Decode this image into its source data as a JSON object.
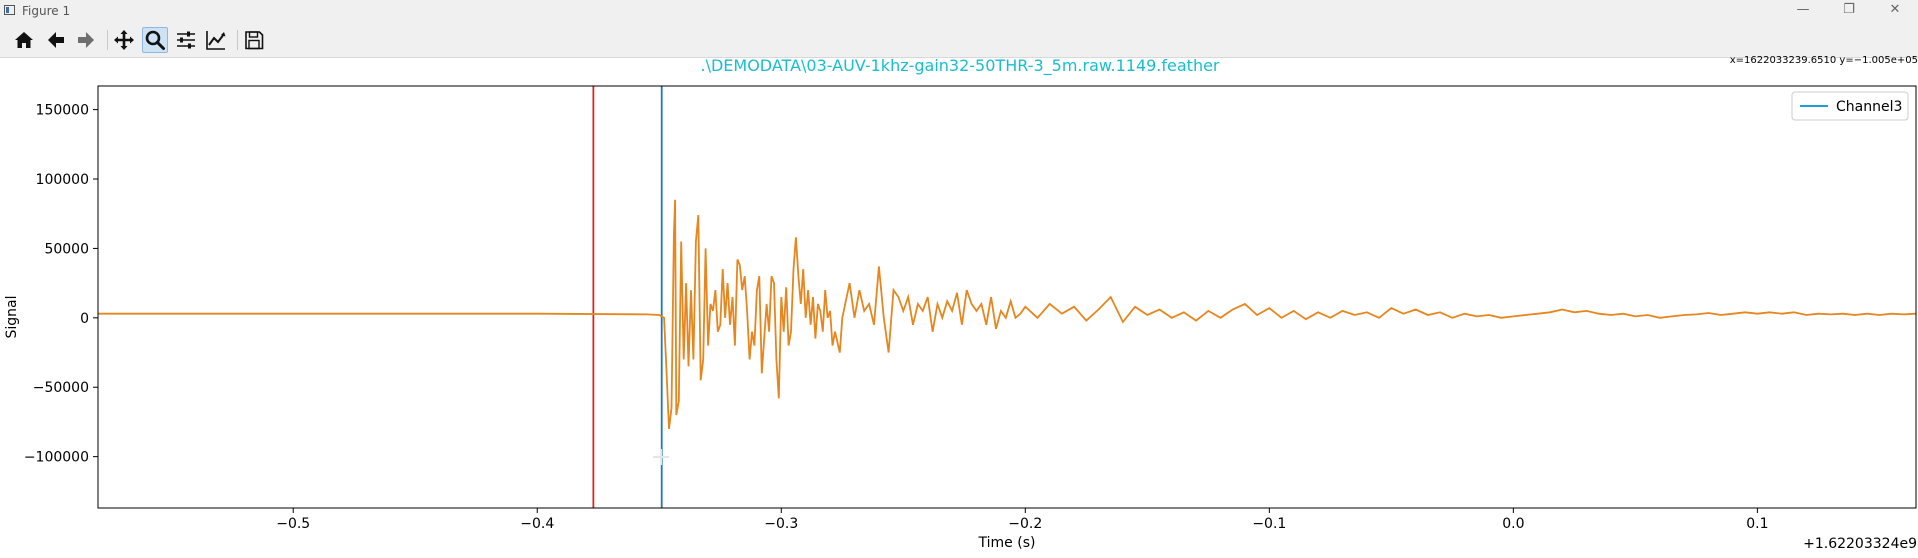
{
  "window": {
    "title": "Figure 1",
    "controls": [
      "minimize",
      "maximize",
      "close"
    ]
  },
  "toolbar": {
    "buttons": [
      {
        "name": "home",
        "icon": "home-icon"
      },
      {
        "name": "back",
        "icon": "arrow-left-icon"
      },
      {
        "name": "forward",
        "icon": "arrow-right-icon"
      },
      {
        "name": "pan",
        "icon": "move-icon"
      },
      {
        "name": "zoom",
        "icon": "magnifier-icon",
        "active": true
      },
      {
        "name": "configure-subplots",
        "icon": "sliders-icon"
      },
      {
        "name": "edit-axis",
        "icon": "line-chart-icon"
      },
      {
        "name": "save",
        "icon": "floppy-disk-icon"
      }
    ],
    "coords": "x=1622033239.6510 y=−1.005e+05"
  },
  "chart_data": {
    "type": "line",
    "title": ".\\DEMODATA\\03-AUV-1khz-gain32-50THR-3_5m.raw.1149.feather",
    "title_color": "#17becf",
    "xlabel": "Time (s)",
    "ylabel": "Signal",
    "offset_text": "+1.62203324e9",
    "xlim": [
      -0.58,
      0.165
    ],
    "ylim": [
      -137000,
      167000
    ],
    "xticks": [
      -0.5,
      -0.4,
      -0.3,
      -0.2,
      -0.1,
      0.0,
      0.1
    ],
    "xtick_labels": [
      "−0.5",
      "−0.4",
      "−0.3",
      "−0.2",
      "−0.1",
      "0.0",
      "0.1"
    ],
    "yticks": [
      -100000,
      -50000,
      0,
      50000,
      100000,
      150000
    ],
    "ytick_labels": [
      "−100000",
      "−50000",
      "0",
      "50000",
      "100000",
      "150000"
    ],
    "grid": false,
    "legend": {
      "placement": "top-right",
      "entries": [
        {
          "label": "Channel3",
          "color": "#1f9fd8"
        }
      ]
    },
    "vlines": [
      {
        "x": -0.377,
        "color": "#d62728"
      },
      {
        "x": -0.349,
        "color": "#1f77b4"
      }
    ],
    "series": [
      {
        "color": "#e6861f",
        "points": [
          [
            -0.58,
            3000
          ],
          [
            -0.5,
            3000
          ],
          [
            -0.4,
            3000
          ],
          [
            -0.355,
            2500
          ],
          [
            -0.35,
            2000
          ],
          [
            -0.348,
            0
          ],
          [
            -0.347,
            -40000
          ],
          [
            -0.346,
            -80000
          ],
          [
            -0.345,
            -65000
          ],
          [
            -0.344,
            60000
          ],
          [
            -0.3435,
            85000
          ],
          [
            -0.343,
            -70000
          ],
          [
            -0.342,
            -60000
          ],
          [
            -0.341,
            55000
          ],
          [
            -0.34,
            -30000
          ],
          [
            -0.339,
            25000
          ],
          [
            -0.338,
            -35000
          ],
          [
            -0.337,
            20000
          ],
          [
            -0.336,
            -30000
          ],
          [
            -0.335,
            55000
          ],
          [
            -0.334,
            74000
          ],
          [
            -0.333,
            -45000
          ],
          [
            -0.332,
            -30000
          ],
          [
            -0.331,
            50000
          ],
          [
            -0.33,
            -20000
          ],
          [
            -0.329,
            10000
          ],
          [
            -0.328,
            5000
          ],
          [
            -0.327,
            20000
          ],
          [
            -0.326,
            -10000
          ],
          [
            -0.325,
            -5000
          ],
          [
            -0.324,
            35000
          ],
          [
            -0.323,
            0
          ],
          [
            -0.322,
            25000
          ],
          [
            -0.321,
            -5000
          ],
          [
            -0.32,
            15000
          ],
          [
            -0.319,
            -20000
          ],
          [
            -0.318,
            42000
          ],
          [
            -0.317,
            38000
          ],
          [
            -0.316,
            20000
          ],
          [
            -0.315,
            30000
          ],
          [
            -0.314,
            5000
          ],
          [
            -0.313,
            -30000
          ],
          [
            -0.312,
            -10000
          ],
          [
            -0.311,
            -20000
          ],
          [
            -0.31,
            20000
          ],
          [
            -0.309,
            30000
          ],
          [
            -0.308,
            -40000
          ],
          [
            -0.307,
            -15000
          ],
          [
            -0.306,
            10000
          ],
          [
            -0.305,
            -10000
          ],
          [
            -0.304,
            30000
          ],
          [
            -0.303,
            25000
          ],
          [
            -0.302,
            -30000
          ],
          [
            -0.301,
            -58000
          ],
          [
            -0.3,
            15000
          ],
          [
            -0.299,
            -10000
          ],
          [
            -0.298,
            22000
          ],
          [
            -0.297,
            -20000
          ],
          [
            -0.296,
            -10000
          ],
          [
            -0.295,
            35000
          ],
          [
            -0.294,
            58000
          ],
          [
            -0.293,
            30000
          ],
          [
            -0.292,
            10000
          ],
          [
            -0.291,
            35000
          ],
          [
            -0.29,
            0
          ],
          [
            -0.289,
            20000
          ],
          [
            -0.288,
            -5000
          ],
          [
            -0.287,
            15000
          ],
          [
            -0.286,
            -15000
          ],
          [
            -0.285,
            10000
          ],
          [
            -0.284,
            5000
          ],
          [
            -0.283,
            -10000
          ],
          [
            -0.282,
            20000
          ],
          [
            -0.281,
            0
          ],
          [
            -0.28,
            5000
          ],
          [
            -0.279,
            -20000
          ],
          [
            -0.278,
            -10000
          ],
          [
            -0.276,
            -25000
          ],
          [
            -0.275,
            0
          ],
          [
            -0.272,
            25000
          ],
          [
            -0.27,
            0
          ],
          [
            -0.268,
            20000
          ],
          [
            -0.266,
            5000
          ],
          [
            -0.264,
            10000
          ],
          [
            -0.262,
            -5000
          ],
          [
            -0.26,
            37000
          ],
          [
            -0.258,
            0
          ],
          [
            -0.256,
            -25000
          ],
          [
            -0.254,
            20000
          ],
          [
            -0.252,
            15000
          ],
          [
            -0.25,
            5000
          ],
          [
            -0.248,
            15000
          ],
          [
            -0.246,
            -5000
          ],
          [
            -0.244,
            10000
          ],
          [
            -0.242,
            5000
          ],
          [
            -0.24,
            15000
          ],
          [
            -0.238,
            -10000
          ],
          [
            -0.236,
            10000
          ],
          [
            -0.234,
            0
          ],
          [
            -0.232,
            12000
          ],
          [
            -0.23,
            5000
          ],
          [
            -0.228,
            18000
          ],
          [
            -0.226,
            -5000
          ],
          [
            -0.224,
            20000
          ],
          [
            -0.222,
            10000
          ],
          [
            -0.22,
            5000
          ],
          [
            -0.218,
            10000
          ],
          [
            -0.216,
            -5000
          ],
          [
            -0.214,
            15000
          ],
          [
            -0.212,
            -8000
          ],
          [
            -0.21,
            5000
          ],
          [
            -0.208,
            0
          ],
          [
            -0.206,
            12000
          ],
          [
            -0.204,
            0
          ],
          [
            -0.202,
            3000
          ],
          [
            -0.2,
            8000
          ],
          [
            -0.195,
            0
          ],
          [
            -0.19,
            10000
          ],
          [
            -0.185,
            3000
          ],
          [
            -0.18,
            8000
          ],
          [
            -0.175,
            -2000
          ],
          [
            -0.17,
            6000
          ],
          [
            -0.165,
            15000
          ],
          [
            -0.16,
            -3000
          ],
          [
            -0.155,
            8000
          ],
          [
            -0.15,
            2000
          ],
          [
            -0.145,
            6000
          ],
          [
            -0.14,
            0
          ],
          [
            -0.135,
            4000
          ],
          [
            -0.13,
            -2000
          ],
          [
            -0.125,
            5000
          ],
          [
            -0.12,
            0
          ],
          [
            -0.115,
            6000
          ],
          [
            -0.11,
            10000
          ],
          [
            -0.105,
            2000
          ],
          [
            -0.1,
            7000
          ],
          [
            -0.095,
            0
          ],
          [
            -0.09,
            5000
          ],
          [
            -0.085,
            -1000
          ],
          [
            -0.08,
            4000
          ],
          [
            -0.075,
            0
          ],
          [
            -0.07,
            5000
          ],
          [
            -0.065,
            2000
          ],
          [
            -0.06,
            4000
          ],
          [
            -0.055,
            0
          ],
          [
            -0.05,
            7000
          ],
          [
            -0.045,
            3000
          ],
          [
            -0.04,
            6000
          ],
          [
            -0.035,
            2000
          ],
          [
            -0.03,
            4000
          ],
          [
            -0.025,
            0
          ],
          [
            -0.02,
            3000
          ],
          [
            -0.015,
            1000
          ],
          [
            -0.01,
            2000
          ],
          [
            -0.005,
            0
          ],
          [
            0.0,
            1000
          ],
          [
            0.005,
            2000
          ],
          [
            0.01,
            3000
          ],
          [
            0.015,
            4000
          ],
          [
            0.02,
            6000
          ],
          [
            0.025,
            4000
          ],
          [
            0.03,
            5000
          ],
          [
            0.035,
            3000
          ],
          [
            0.04,
            2000
          ],
          [
            0.045,
            3000
          ],
          [
            0.05,
            1000
          ],
          [
            0.055,
            2000
          ],
          [
            0.06,
            0
          ],
          [
            0.065,
            1000
          ],
          [
            0.07,
            2000
          ],
          [
            0.075,
            2500
          ],
          [
            0.08,
            3500
          ],
          [
            0.085,
            2000
          ],
          [
            0.09,
            3000
          ],
          [
            0.095,
            4000
          ],
          [
            0.1,
            3000
          ],
          [
            0.105,
            4000
          ],
          [
            0.11,
            3000
          ],
          [
            0.115,
            4000
          ],
          [
            0.12,
            2000
          ],
          [
            0.125,
            3000
          ],
          [
            0.13,
            2500
          ],
          [
            0.135,
            3000
          ],
          [
            0.14,
            2000
          ],
          [
            0.145,
            3000
          ],
          [
            0.15,
            2000
          ],
          [
            0.155,
            3000
          ],
          [
            0.16,
            2500
          ],
          [
            0.165,
            3000
          ]
        ]
      }
    ]
  }
}
